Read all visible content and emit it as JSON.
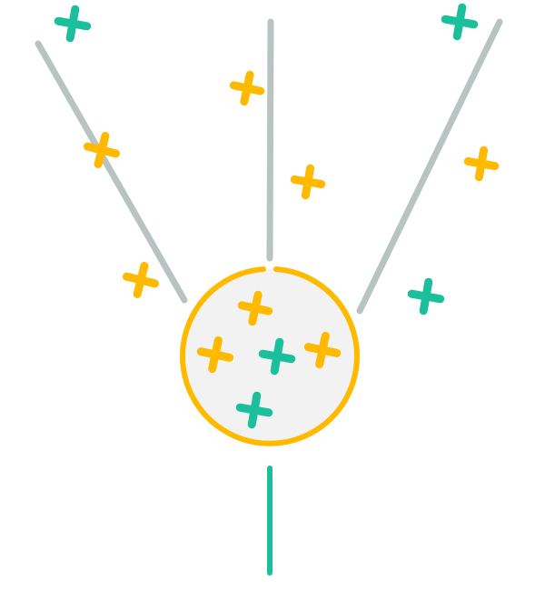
{
  "colors": {
    "background": "#ffffff",
    "funnel_line": "#b9c3c2",
    "green": "#1bbf9b",
    "yellow": "#ffba00",
    "circle_fill": "#f2f2f2",
    "circle_stroke": "#ffba00"
  },
  "marks": {
    "outside_crosses": [
      {
        "color": "green"
      },
      {
        "color": "green"
      },
      {
        "color": "yellow"
      },
      {
        "color": "yellow"
      },
      {
        "color": "yellow"
      },
      {
        "color": "yellow"
      },
      {
        "color": "yellow"
      },
      {
        "color": "green"
      }
    ],
    "inside_crosses": [
      {
        "color": "yellow"
      },
      {
        "color": "yellow"
      },
      {
        "color": "green"
      },
      {
        "color": "yellow"
      },
      {
        "color": "green"
      }
    ]
  },
  "icons": {
    "cross": "plus-icon"
  }
}
